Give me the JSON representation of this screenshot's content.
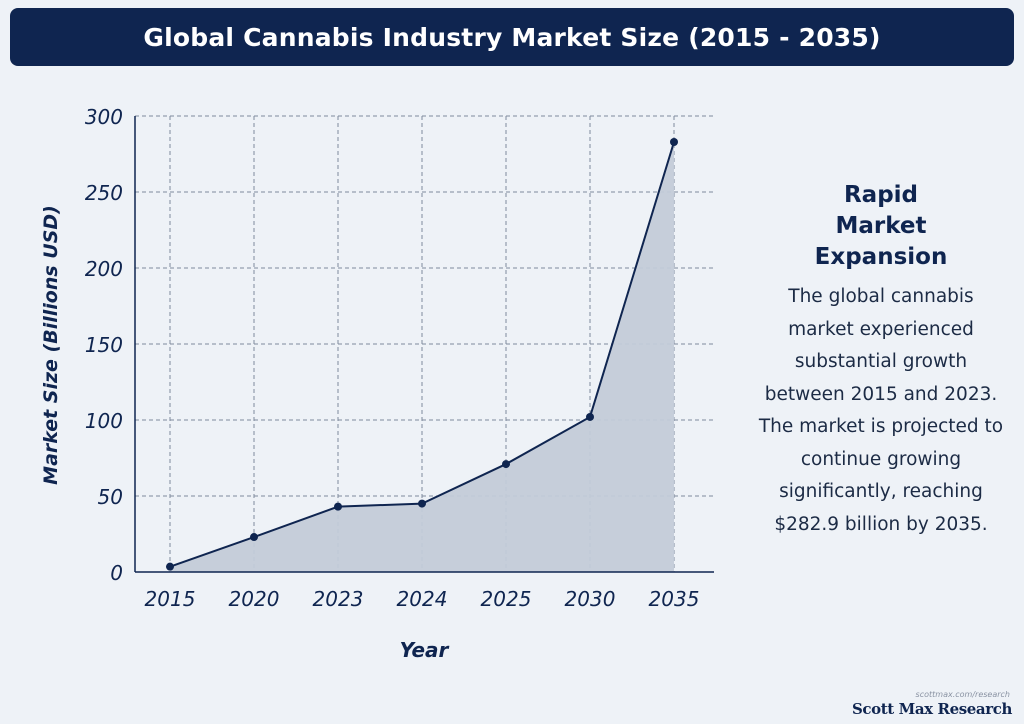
{
  "title": "Global Cannabis Industry Market Size (2015 - 2035)",
  "chart_data": {
    "type": "area",
    "categories": [
      "2015",
      "2020",
      "2023",
      "2024",
      "2025",
      "2030",
      "2035"
    ],
    "series": [
      {
        "values": [
          3.5,
          23,
          43,
          45,
          71,
          102,
          282.9
        ]
      }
    ],
    "xlabel": "Year",
    "ylabel": "Market Size (Billions USD)",
    "ylim": [
      0,
      300
    ],
    "yticks": [
      0,
      50,
      100,
      150,
      200,
      250,
      300
    ],
    "grid": true,
    "colors": {
      "line": "#0f2550",
      "fill": "#c3cbd8",
      "grid": "#7f8a9c",
      "text": "#0f2550"
    }
  },
  "side_panel": {
    "heading": "Rapid Market Expansion",
    "body": "The global cannabis market experienced substantial growth between 2015 and 2023. The market is projected to continue growing significantly, reaching $282.9 billion by 2035."
  },
  "brand": {
    "url": "scottmax.com/research",
    "name": "Scott Max Research"
  }
}
